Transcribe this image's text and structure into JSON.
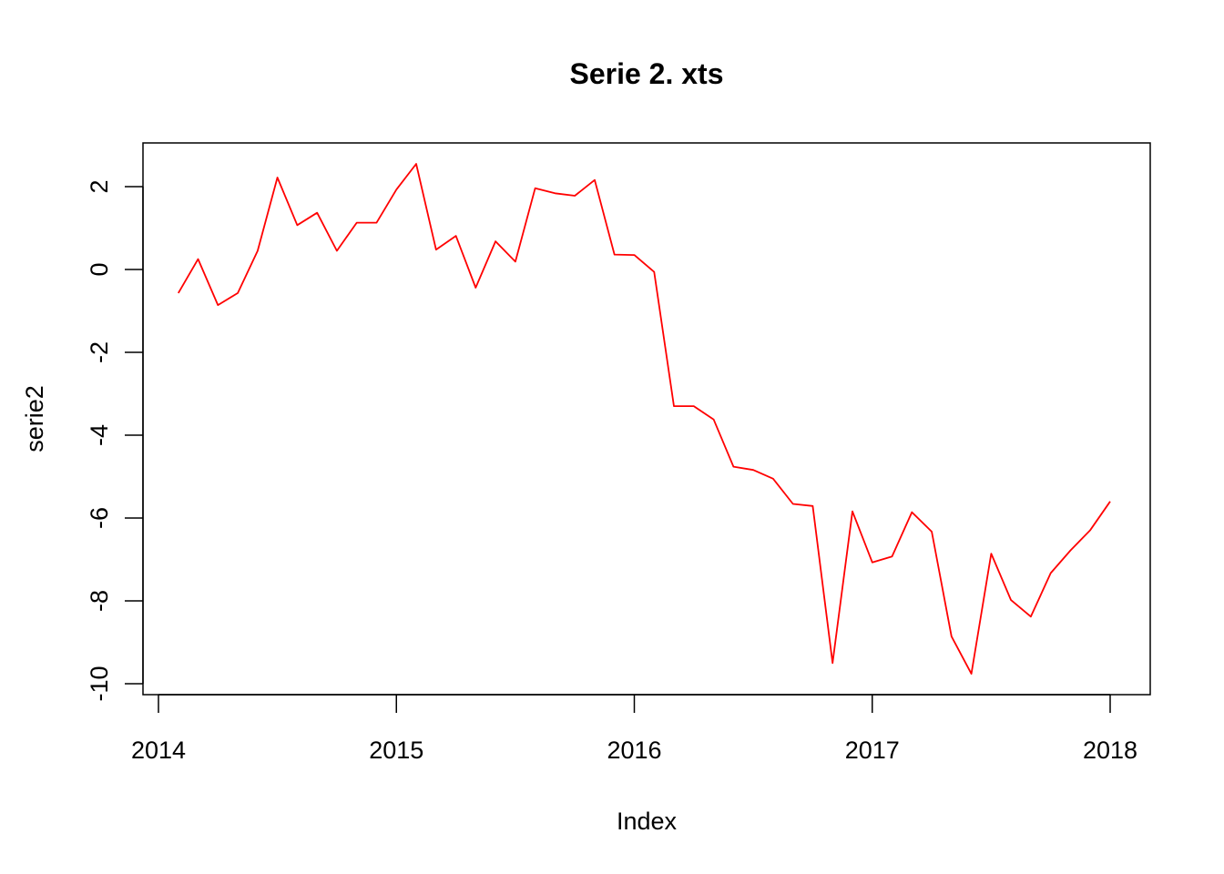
{
  "chart_data": {
    "type": "line",
    "title": "Serie 2. xts",
    "xlabel": "Index",
    "ylabel": "serie2",
    "x_ticks": [
      "2014",
      "2015",
      "2016",
      "2017",
      "2018"
    ],
    "y_ticks": [
      "2",
      "0",
      "-2",
      "-4",
      "-6",
      "-8",
      "-10"
    ],
    "xlim": [
      "2014-01",
      "2018-02"
    ],
    "ylim": [
      -10,
      2.8
    ],
    "grid": false,
    "line_color": "#ff0000",
    "series": [
      {
        "x": [
          "2014-02",
          "2014-03",
          "2014-04",
          "2014-05",
          "2014-06",
          "2014-07",
          "2014-08",
          "2014-09",
          "2014-10",
          "2014-11",
          "2014-12",
          "2015-01",
          "2015-02",
          "2015-03",
          "2015-04",
          "2015-05",
          "2015-06",
          "2015-07",
          "2015-08",
          "2015-09",
          "2015-10",
          "2015-11",
          "2015-12",
          "2016-01",
          "2016-02",
          "2016-03",
          "2016-04",
          "2016-05",
          "2016-06",
          "2016-07",
          "2016-08",
          "2016-09",
          "2016-10",
          "2016-11",
          "2016-12",
          "2017-01",
          "2017-02",
          "2017-03",
          "2017-04",
          "2017-05",
          "2017-06",
          "2017-07",
          "2017-08",
          "2017-09",
          "2017-10",
          "2017-11",
          "2017-12",
          "2018-01"
        ],
        "values": [
          -0.57,
          0.25,
          -0.86,
          -0.57,
          0.45,
          2.22,
          1.07,
          1.37,
          0.45,
          1.13,
          1.13,
          1.93,
          2.55,
          0.48,
          0.81,
          -0.44,
          0.68,
          0.19,
          1.96,
          1.84,
          1.78,
          2.16,
          0.36,
          0.35,
          -0.06,
          -3.3,
          -3.3,
          -3.62,
          -4.76,
          -4.84,
          -5.05,
          -5.66,
          -5.71,
          -9.5,
          -5.84,
          -7.07,
          -6.93,
          -5.86,
          -6.33,
          -8.86,
          -9.76,
          -6.86,
          -7.98,
          -8.38,
          -7.33,
          -6.78,
          -6.29,
          -5.6
        ]
      }
    ]
  }
}
